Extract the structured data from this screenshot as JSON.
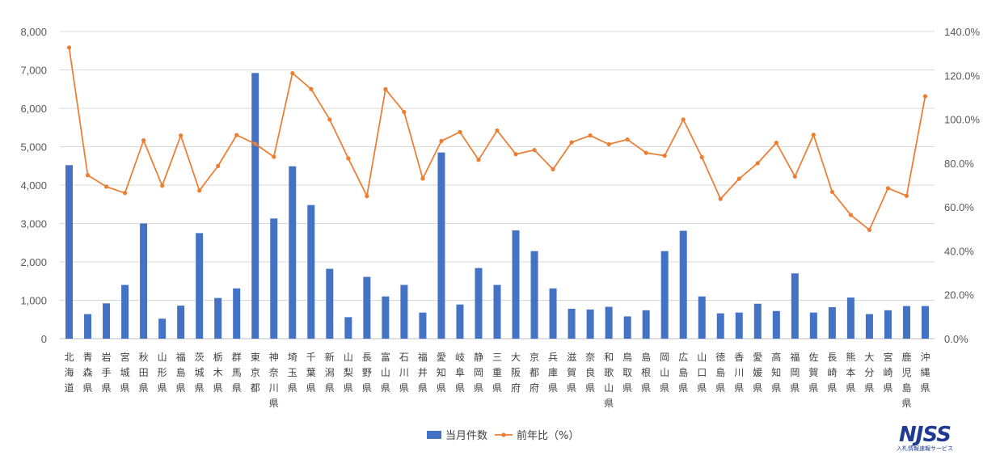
{
  "chart_data": {
    "type": "bar+line",
    "categories": [
      "北海道",
      "青森県",
      "岩手県",
      "宮城県",
      "秋田県",
      "山形県",
      "福島県",
      "茨城県",
      "栃木県",
      "群馬県",
      "東京都",
      "神奈川県",
      "埼玉県",
      "千葉県",
      "新潟県",
      "山梨県",
      "長野県",
      "富山県",
      "石川県",
      "福井県",
      "愛知県",
      "岐阜県",
      "静岡県",
      "三重県",
      "大阪府",
      "京都府",
      "兵庫県",
      "滋賀県",
      "奈良県",
      "和歌山県",
      "鳥取県",
      "島根県",
      "岡山県",
      "広島県",
      "山口県",
      "徳島県",
      "香川県",
      "愛媛県",
      "高知県",
      "福岡県",
      "佐賀県",
      "長崎県",
      "熊本県",
      "大分県",
      "宮崎県",
      "鹿児島県",
      "沖縄県"
    ],
    "series": [
      {
        "name": "当月件数",
        "type": "bar",
        "axis": "left",
        "color": "#4472c4",
        "values": [
          4520,
          640,
          920,
          1400,
          3000,
          520,
          860,
          2750,
          1060,
          1310,
          6920,
          3130,
          4490,
          3480,
          1820,
          560,
          1610,
          1100,
          1400,
          680,
          4850,
          890,
          1840,
          1400,
          2820,
          2280,
          1310,
          780,
          760,
          830,
          580,
          740,
          2280,
          2810,
          1100,
          660,
          680,
          910,
          720,
          1700,
          680,
          820,
          1070,
          640,
          740,
          850,
          850
        ]
      },
      {
        "name": "前年比（%）",
        "type": "line",
        "axis": "right",
        "color": "#ed7d31",
        "values": [
          132.7,
          74.5,
          69.3,
          66.4,
          90.4,
          69.7,
          92.6,
          67.5,
          78.7,
          92.8,
          88.8,
          82.9,
          121.0,
          113.8,
          99.9,
          82.2,
          65.0,
          113.7,
          103.3,
          73.0,
          90.1,
          94.2,
          81.5,
          94.9,
          84.1,
          86.0,
          77.2,
          89.5,
          92.6,
          88.6,
          90.8,
          84.7,
          83.4,
          99.9,
          82.7,
          63.7,
          72.9,
          80.0,
          89.3,
          73.9,
          92.9,
          66.9,
          56.4,
          49.6,
          68.6,
          65.1,
          110.5
        ]
      }
    ],
    "y_left": {
      "min": 0,
      "max": 8000,
      "step": 1000,
      "tick_labels": [
        "0",
        "1,000",
        "2,000",
        "3,000",
        "4,000",
        "5,000",
        "6,000",
        "7,000",
        "8,000"
      ]
    },
    "y_right": {
      "min": 0,
      "max": 140,
      "step": 20,
      "tick_labels": [
        "0.0%",
        "20.0%",
        "40.0%",
        "60.0%",
        "80.0%",
        "100.0%",
        "120.0%",
        "140.0%"
      ]
    },
    "grid": true,
    "legend": "bottom-center",
    "title": "",
    "xlabel": "",
    "ylabel": ""
  },
  "logo": {
    "mark": "NJSS",
    "subtitle": "入札情報速報サービス"
  }
}
